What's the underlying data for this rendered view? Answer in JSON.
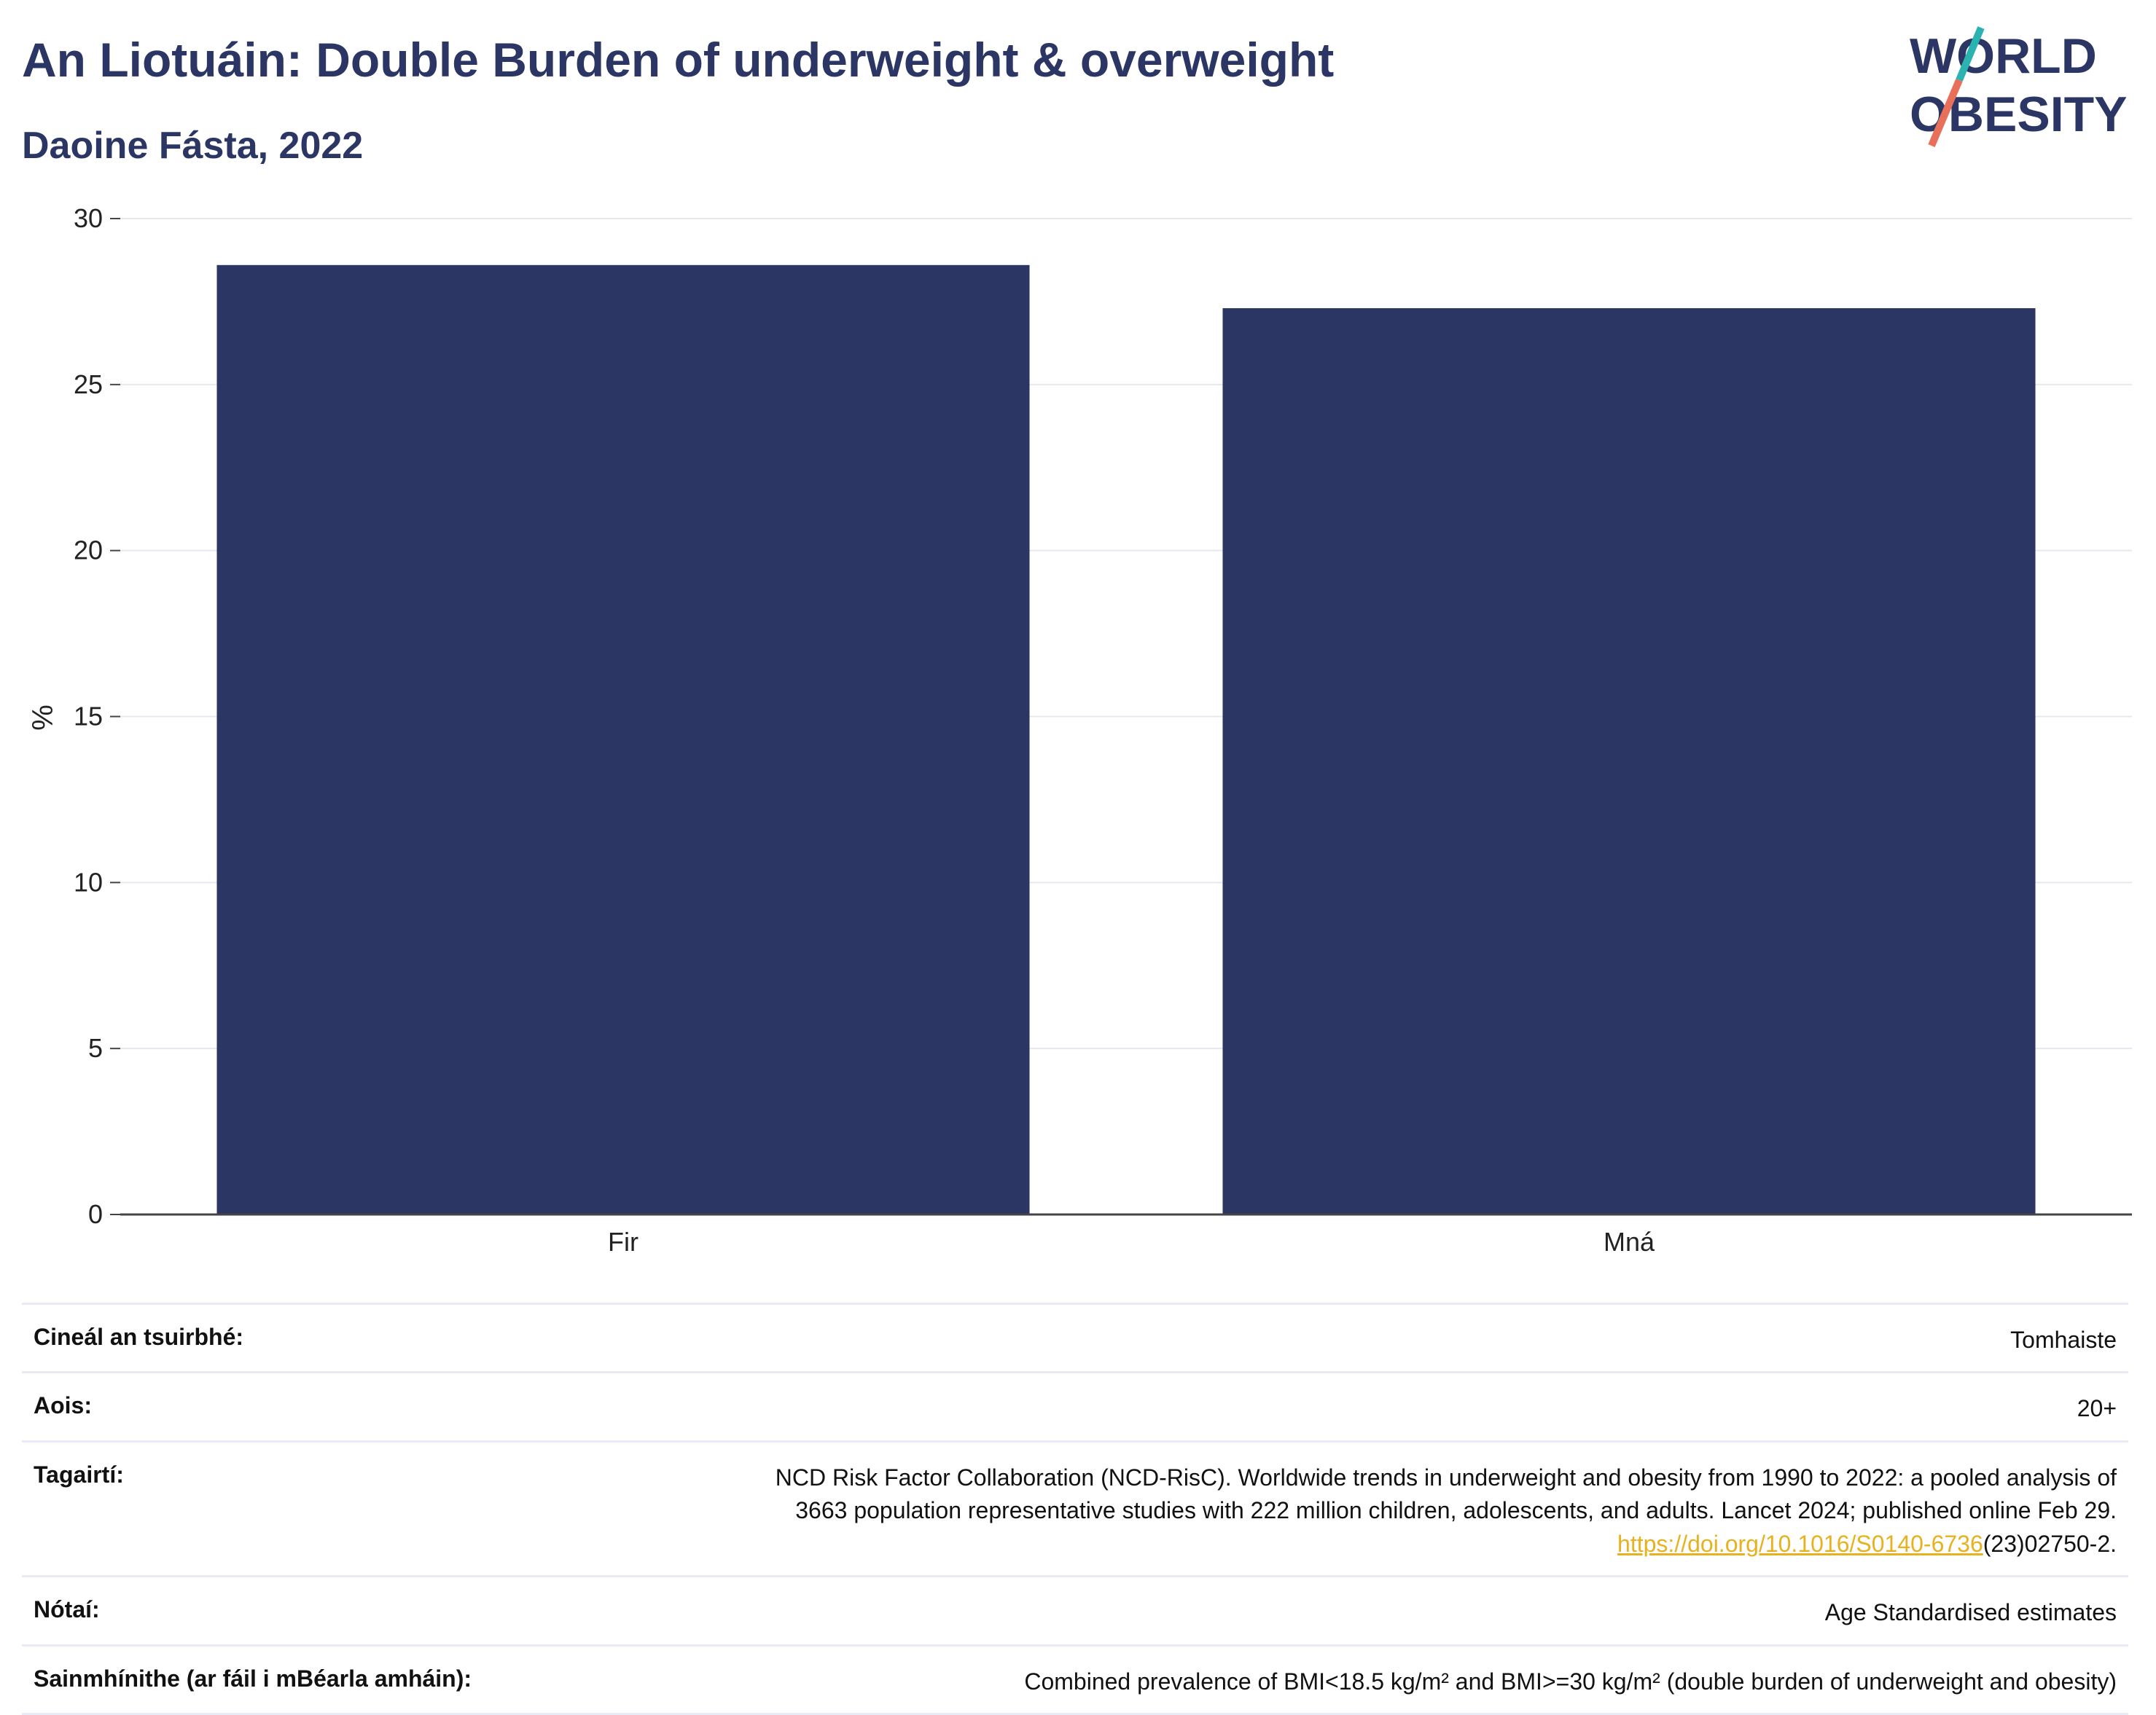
{
  "header": {
    "title": "An Liotuáin: Double Burden of underweight & overweight",
    "subtitle": "Daoine Fásta, 2022"
  },
  "logo": {
    "line1": "WORLD",
    "line2": "OBESITY"
  },
  "colors": {
    "bar": "#2b3664",
    "title": "#2b3664",
    "grid": "#e6e8ef",
    "link": "#e8b21e"
  },
  "chart_data": {
    "type": "bar",
    "categories": [
      "Fir",
      "Mná"
    ],
    "values": [
      28.6,
      27.3
    ],
    "ylabel": "%",
    "ylim": [
      0,
      30
    ],
    "yticks": [
      0,
      5,
      10,
      15,
      20,
      25,
      30
    ],
    "grid": true
  },
  "info": {
    "survey_label": "Cineál an tsuirbhé:",
    "survey_value": "Tomhaiste",
    "age_label": "Aois:",
    "age_value": "20+",
    "refs_label": "Tagairtí:",
    "refs_line1": "NCD Risk Factor Collaboration (NCD-RisC). Worldwide trends in underweight and obesity from 1990 to 2022: a pooled analysis of",
    "refs_line2": "3663 population representative studies with 222 million children, adolescents, and adults. Lancet 2024; published online Feb 29.",
    "refs_link": "https://doi.org/10.1016/S0140-6736",
    "refs_tail": "(23)02750-2.",
    "notes_label": "Nótaí:",
    "notes_value": "Age Standardised estimates",
    "def_label": "Sainmhínithe (ar fáil i mBéarla amháin):",
    "def_value": "Combined prevalence of BMI<18.5 kg/m² and BMI>=30 kg/m² (double burden of underweight and obesity)"
  }
}
